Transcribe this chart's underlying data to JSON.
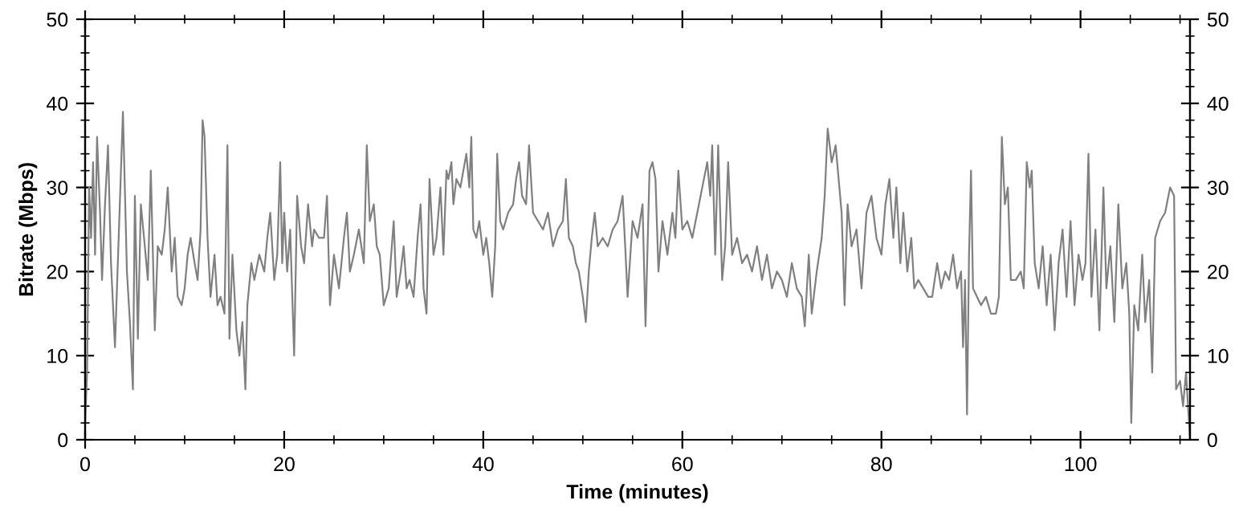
{
  "chart_data": {
    "type": "line",
    "xlabel": "Time (minutes)",
    "ylabel": "Bitrate (Mbps)",
    "xlim": [
      0,
      111
    ],
    "ylim": [
      0,
      50
    ],
    "y2lim": [
      0,
      50
    ],
    "xticks": [
      0,
      {
        "value": 5,
        "label": null
      },
      {
        "value": 10,
        "label": null
      },
      {
        "value": 15,
        "label": null
      },
      20,
      {
        "value": 25,
        "label": null
      },
      {
        "value": 30,
        "label": null
      },
      {
        "value": 35,
        "label": null
      },
      40,
      {
        "value": 45,
        "label": null
      },
      {
        "value": 50,
        "label": null
      },
      {
        "value": 55,
        "label": null
      },
      60,
      {
        "value": 65,
        "label": null
      },
      {
        "value": 70,
        "label": null
      },
      {
        "value": 75,
        "label": null
      },
      80,
      {
        "value": 85,
        "label": null
      },
      {
        "value": 90,
        "label": null
      },
      {
        "value": 95,
        "label": null
      },
      100,
      {
        "value": 105,
        "label": null
      },
      {
        "value": 110,
        "label": null
      }
    ],
    "yticks": [
      0,
      {
        "value": 2,
        "label": null
      },
      {
        "value": 4,
        "label": null
      },
      {
        "value": 6,
        "label": null
      },
      {
        "value": 8,
        "label": null
      },
      10,
      {
        "value": 12,
        "label": null
      },
      {
        "value": 14,
        "label": null
      },
      {
        "value": 16,
        "label": null
      },
      {
        "value": 18,
        "label": null
      },
      20,
      {
        "value": 22,
        "label": null
      },
      {
        "value": 24,
        "label": null
      },
      {
        "value": 26,
        "label": null
      },
      {
        "value": 28,
        "label": null
      },
      30,
      {
        "value": 32,
        "label": null
      },
      {
        "value": 34,
        "label": null
      },
      {
        "value": 36,
        "label": null
      },
      {
        "value": 38,
        "label": null
      },
      40,
      {
        "value": 42,
        "label": null
      },
      {
        "value": 44,
        "label": null
      },
      {
        "value": 46,
        "label": null
      },
      {
        "value": 48,
        "label": null
      },
      50
    ],
    "y2ticks": [
      0,
      {
        "value": 2,
        "label": null
      },
      {
        "value": 4,
        "label": null
      },
      {
        "value": 6,
        "label": null
      },
      {
        "value": 8,
        "label": null
      },
      10,
      {
        "value": 12,
        "label": null
      },
      {
        "value": 14,
        "label": null
      },
      {
        "value": 16,
        "label": null
      },
      {
        "value": 18,
        "label": null
      },
      20,
      {
        "value": 22,
        "label": null
      },
      {
        "value": 24,
        "label": null
      },
      {
        "value": 26,
        "label": null
      },
      {
        "value": 28,
        "label": null
      },
      30,
      {
        "value": 32,
        "label": null
      },
      {
        "value": 34,
        "label": null
      },
      {
        "value": 36,
        "label": null
      },
      {
        "value": 38,
        "label": null
      },
      40,
      {
        "value": 42,
        "label": null
      },
      {
        "value": 44,
        "label": null
      },
      {
        "value": 46,
        "label": null
      },
      {
        "value": 48,
        "label": null
      },
      50
    ],
    "grid": false,
    "marker": "none",
    "line_style": "solid",
    "series": [
      {
        "color": "#808080",
        "x": [
          0,
          0.2,
          0.4,
          0.6,
          0.8,
          1.0,
          1.2,
          1.5,
          1.7,
          2.0,
          2.3,
          2.6,
          3.0,
          3.4,
          3.8,
          4.2,
          4.5,
          4.8,
          5.0,
          5.3,
          5.6,
          6.0,
          6.3,
          6.6,
          7.0,
          7.3,
          7.7,
          8.0,
          8.3,
          8.7,
          9.0,
          9.3,
          9.7,
          10.0,
          10.3,
          10.6,
          11.0,
          11.3,
          11.6,
          11.8,
          12.0,
          12.3,
          12.6,
          13.0,
          13.3,
          13.6,
          14.0,
          14.3,
          14.5,
          14.8,
          15.2,
          15.5,
          15.8,
          16.1,
          16.3,
          16.7,
          17.0,
          17.5,
          18.0,
          18.3,
          18.6,
          19.0,
          19.3,
          19.6,
          19.8,
          20.0,
          20.3,
          20.6,
          21.0,
          21.3,
          21.7,
          22.0,
          22.4,
          22.8,
          23.0,
          23.5,
          24.0,
          24.3,
          24.6,
          25.0,
          25.5,
          26.0,
          26.3,
          26.6,
          27.0,
          27.5,
          28.0,
          28.3,
          28.6,
          29.0,
          29.3,
          29.6,
          30.0,
          30.5,
          31.0,
          31.3,
          31.7,
          32.0,
          32.3,
          32.6,
          33.0,
          33.4,
          33.7,
          34.0,
          34.3,
          34.6,
          35.0,
          35.3,
          35.7,
          36.0,
          36.3,
          36.5,
          36.8,
          37.0,
          37.3,
          37.7,
          38.0,
          38.3,
          38.6,
          38.8,
          39.0,
          39.3,
          39.6,
          40.0,
          40.3,
          40.6,
          40.9,
          41.2,
          41.4,
          41.7,
          42.0,
          42.5,
          43.0,
          43.3,
          43.6,
          43.9,
          44.3,
          44.6,
          45.0,
          45.5,
          46.0,
          46.5,
          47.0,
          47.5,
          48.0,
          48.3,
          48.6,
          49.0,
          49.3,
          49.6,
          50.0,
          50.3,
          50.6,
          50.9,
          51.2,
          51.5,
          52.0,
          52.5,
          53.0,
          53.5,
          54.0,
          54.3,
          54.5,
          55.0,
          55.5,
          56.0,
          56.3,
          56.7,
          57.0,
          57.3,
          57.6,
          58.0,
          58.5,
          59.0,
          59.3,
          59.6,
          60.0,
          60.5,
          61.0,
          61.5,
          62.0,
          62.5,
          62.8,
          63.0,
          63.3,
          63.6,
          64.0,
          64.3,
          64.6,
          65.0,
          65.5,
          66.0,
          66.5,
          67.0,
          67.5,
          68.0,
          68.5,
          69.0,
          69.5,
          70.0,
          70.5,
          71.0,
          71.5,
          72.0,
          72.3,
          72.7,
          73.0,
          73.5,
          74.0,
          74.3,
          74.6,
          75.0,
          75.4,
          75.7,
          76.0,
          76.3,
          76.6,
          77.0,
          77.5,
          78.0,
          78.5,
          79.0,
          79.5,
          80.0,
          80.4,
          80.8,
          81.2,
          81.5,
          81.9,
          82.2,
          82.6,
          83.0,
          83.3,
          83.7,
          84.2,
          84.7,
          85.1,
          85.6,
          86.0,
          86.4,
          86.8,
          87.2,
          87.6,
          88.0,
          88.2,
          88.4,
          88.6,
          88.8,
          89.0,
          89.2,
          89.6,
          90.0,
          90.5,
          91.0,
          91.5,
          91.8,
          92.1,
          92.4,
          92.7,
          93.0,
          93.5,
          94.0,
          94.3,
          94.6,
          94.9,
          95.1,
          95.4,
          95.8,
          96.2,
          96.6,
          97.0,
          97.4,
          97.8,
          98.2,
          98.6,
          99.0,
          99.4,
          99.8,
          100.2,
          100.5,
          100.8,
          101.1,
          101.5,
          101.9,
          102.3,
          102.6,
          103.0,
          103.4,
          103.8,
          104.2,
          104.6,
          104.9,
          105.1,
          105.4,
          105.8,
          106.2,
          106.5,
          106.9,
          107.2,
          107.5,
          108.0,
          108.5,
          109.0,
          109.4,
          109.6,
          110.0,
          110.3,
          110.6,
          111.0
        ],
        "values": [
          2,
          8,
          30,
          24,
          33,
          22,
          36,
          27,
          19,
          28,
          35,
          21,
          11,
          25,
          39,
          20,
          14,
          6,
          29,
          12,
          28,
          23,
          19,
          32,
          13,
          23,
          22,
          25,
          30,
          20,
          24,
          17,
          16,
          18,
          22,
          24,
          21,
          19,
          25,
          38,
          36,
          24,
          17,
          22,
          16,
          17,
          15,
          35,
          12,
          22,
          13,
          10,
          14,
          6,
          16,
          21,
          19,
          22,
          20,
          24,
          27,
          19,
          22,
          33,
          21,
          27,
          20,
          25,
          10,
          29,
          23,
          21,
          28,
          23,
          25,
          24,
          24,
          29,
          16,
          22,
          18,
          24,
          27,
          20,
          22,
          25,
          21,
          35,
          26,
          28,
          23,
          22,
          16,
          18,
          26,
          17,
          20,
          23,
          18,
          19,
          17,
          24,
          28,
          18,
          15,
          31,
          22,
          24,
          30,
          22,
          32,
          31,
          33,
          28,
          31,
          30,
          32,
          34,
          30,
          36,
          25,
          24,
          26,
          22,
          24,
          21,
          17,
          23,
          34,
          26,
          25,
          27,
          28,
          31,
          33,
          29,
          28,
          35,
          27,
          26,
          25,
          27,
          23,
          25,
          26,
          31,
          24,
          23,
          21,
          20,
          17,
          14,
          20,
          24,
          27,
          23,
          24,
          23,
          25,
          26,
          29,
          22,
          17,
          26,
          24,
          28,
          13.5,
          32,
          33,
          31,
          20,
          26,
          22,
          27,
          24,
          32,
          25,
          26,
          24,
          27,
          30,
          33,
          29,
          35,
          22,
          35,
          19,
          23,
          33,
          22,
          24,
          21,
          22,
          20,
          23,
          19,
          22,
          18,
          20,
          19,
          17,
          21,
          18,
          17,
          13.5,
          22,
          15,
          20,
          24,
          29,
          37,
          33,
          35,
          31,
          27,
          16,
          28,
          23,
          25,
          18,
          27,
          29,
          24,
          22,
          28,
          31,
          24,
          30,
          21,
          27,
          20,
          24,
          18,
          19,
          18,
          17,
          17,
          21,
          18,
          20,
          19,
          22,
          18,
          20,
          11,
          19,
          3,
          22,
          32,
          18,
          17,
          16,
          17,
          15,
          15,
          17,
          36,
          28,
          30,
          19,
          19,
          20,
          18,
          33,
          30,
          32,
          21,
          18,
          23,
          16,
          22,
          13,
          21,
          25,
          17,
          26,
          16,
          22,
          19,
          21,
          34,
          17,
          25,
          13,
          30,
          18,
          23,
          14,
          28,
          18,
          21,
          15,
          2,
          16,
          13,
          22,
          14,
          19,
          8,
          24,
          26,
          27,
          30,
          29,
          6,
          7,
          4,
          8,
          0
        ]
      }
    ]
  }
}
